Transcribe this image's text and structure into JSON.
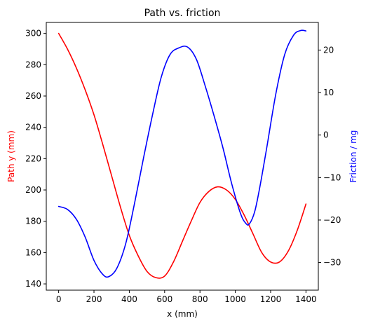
{
  "chart_data": {
    "type": "line",
    "title": "Path vs. friction",
    "xlabel": "x (mm)",
    "ylabel_left": "Path y (mm)",
    "ylabel_right": "Friction / mg",
    "xlim": [
      -70,
      1470
    ],
    "ylim_left": [
      136,
      307
    ],
    "ylim_right": [
      -36.5,
      26.5
    ],
    "xticks": [
      0,
      200,
      400,
      600,
      800,
      1000,
      1200,
      1400
    ],
    "yticks_left": [
      140,
      160,
      180,
      200,
      220,
      240,
      260,
      280,
      300
    ],
    "yticks_right": [
      -30,
      -20,
      -10,
      0,
      10,
      20
    ],
    "grid": false,
    "series": [
      {
        "name": "",
        "axis": "left",
        "color": "#ff0000",
        "x": [
          0,
          50,
          100,
          150,
          200,
          250,
          300,
          350,
          400,
          450,
          500,
          550,
          600,
          650,
          700,
          750,
          800,
          850,
          900,
          950,
          1000,
          1050,
          1100,
          1150,
          1200,
          1250,
          1300,
          1350,
          1400
        ],
        "y": [
          300,
          290,
          278,
          264,
          248,
          229,
          209,
          189,
          171,
          158,
          148,
          144,
          145,
          154,
          167,
          180,
          192,
          199,
          202,
          200,
          194,
          184,
          172,
          160,
          154,
          154,
          161,
          174,
          191
        ]
      },
      {
        "name": "",
        "axis": "right",
        "color": "#0000ff",
        "x": [
          0,
          50,
          100,
          150,
          200,
          250,
          285,
          330,
          380,
          430,
          480,
          530,
          580,
          630,
          680,
          730,
          780,
          830,
          880,
          930,
          980,
          1030,
          1060,
          1080,
          1110,
          1140,
          1180,
          1230,
          1280,
          1330,
          1370,
          1400
        ],
        "y": [
          -16.8,
          -17.5,
          -19.8,
          -24.0,
          -29.5,
          -32.8,
          -33.3,
          -31.3,
          -25.5,
          -16.0,
          -5.5,
          4.5,
          13.5,
          18.9,
          20.5,
          20.7,
          17.8,
          11.5,
          4.5,
          -3.0,
          -11.5,
          -18.5,
          -20.8,
          -20.9,
          -18.0,
          -12.0,
          -2.5,
          9.8,
          19.0,
          23.5,
          24.6,
          24.5
        ]
      }
    ]
  }
}
